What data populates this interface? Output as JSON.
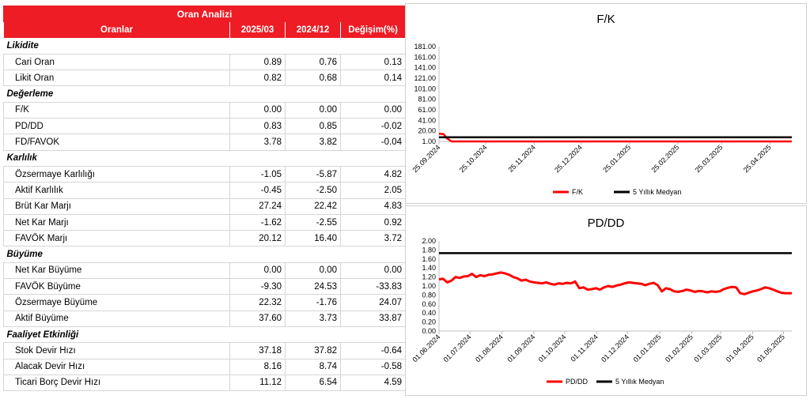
{
  "table": {
    "title": "Oran Analizi",
    "headers": [
      "Oranlar",
      "2025/03",
      "2024/12",
      "Değişim(%)"
    ],
    "sections": [
      {
        "name": "Likidite",
        "rows": [
          {
            "label": "Cari Oran",
            "v1": "0.89",
            "v2": "0.76",
            "chg": "0.13"
          },
          {
            "label": "Likit Oran",
            "v1": "0.82",
            "v2": "0.68",
            "chg": "0.14"
          }
        ]
      },
      {
        "name": "Değerleme",
        "rows": [
          {
            "label": "F/K",
            "v1": "0.00",
            "v2": "0.00",
            "chg": "0.00"
          },
          {
            "label": "PD/DD",
            "v1": "0.83",
            "v2": "0.85",
            "chg": "-0.02"
          },
          {
            "label": "FD/FAVOK",
            "v1": "3.78",
            "v2": "3.82",
            "chg": "-0.04"
          }
        ]
      },
      {
        "name": "Karlılık",
        "rows": [
          {
            "label": "Özsermaye Karlılığı",
            "v1": "-1.05",
            "v2": "-5.87",
            "chg": "4.82"
          },
          {
            "label": "Aktif Karlılık",
            "v1": "-0.45",
            "v2": "-2.50",
            "chg": "2.05"
          },
          {
            "label": "Brüt Kar Marjı",
            "v1": "27.24",
            "v2": "22.42",
            "chg": "4.83"
          },
          {
            "label": "Net Kar Marjı",
            "v1": "-1.62",
            "v2": "-2.55",
            "chg": "0.92"
          },
          {
            "label": "FAVÖK Marjı",
            "v1": "20.12",
            "v2": "16.40",
            "chg": "3.72"
          }
        ]
      },
      {
        "name": "Büyüme",
        "rows": [
          {
            "label": "Net Kar Büyüme",
            "v1": "0.00",
            "v2": "0.00",
            "chg": "0.00"
          },
          {
            "label": "FAVÖK Büyüme",
            "v1": "-9.30",
            "v2": "24.53",
            "chg": "-33.83"
          },
          {
            "label": "Özsermaye Büyüme",
            "v1": "22.32",
            "v2": "-1.76",
            "chg": "24.07"
          },
          {
            "label": "Aktif Büyüme",
            "v1": "37.60",
            "v2": "3.73",
            "chg": "33.87"
          }
        ]
      },
      {
        "name": "Faaliyet Etkinliği",
        "rows": [
          {
            "label": "Stok Devir Hızı",
            "v1": "37.18",
            "v2": "37.82",
            "chg": "-0.64"
          },
          {
            "label": "Alacak Devir Hızı",
            "v1": "8.16",
            "v2": "8.74",
            "chg": "-0.58"
          },
          {
            "label": "Ticari Borç Devir Hızı",
            "v1": "11.12",
            "v2": "6.54",
            "chg": "4.59"
          }
        ]
      }
    ]
  },
  "colors": {
    "header_bg": "#ee1c25",
    "series": "#ff0000",
    "median": "#000000"
  },
  "chart_data": [
    {
      "type": "line",
      "title": "F/K",
      "yticks": [
        "181.00",
        "161.00",
        "141.00",
        "121.00",
        "101.00",
        "81.00",
        "61.00",
        "41.00",
        "20.00",
        "1.00"
      ],
      "xticks": [
        "25.09.2024",
        "25.10.2024",
        "25.11.2024",
        "25.12.2024",
        "25.01.2025",
        "25.02.2025",
        "25.03.2025",
        "25.04.2025"
      ],
      "ylim": [
        1,
        181
      ],
      "x_start": "2024-09-25",
      "x_end": "2025-05-09",
      "series": [
        {
          "name": "F/K",
          "points": [
            [
              "2024-09-25",
              15.5
            ],
            [
              "2024-09-28",
              15.0
            ],
            [
              "2024-09-30",
              7.0
            ],
            [
              "2024-10-03",
              1.0
            ],
            [
              "2025-05-09",
              1.0
            ]
          ]
        },
        {
          "name": "5 Yıllık Medyan",
          "points": [
            [
              "2024-09-25",
              9.0
            ],
            [
              "2025-05-09",
              9.0
            ]
          ]
        }
      ],
      "legend": [
        "F/K",
        "5 Yıllık Medyan"
      ],
      "legend_position": "bottom"
    },
    {
      "type": "line",
      "title": "PD/DD",
      "yticks": [
        "2.00",
        "1.80",
        "1.60",
        "1.40",
        "1.20",
        "1.00",
        "0.80",
        "0.60",
        "0.40",
        "0.20",
        "0.00"
      ],
      "xticks": [
        "01.06.2024",
        "01.07.2024",
        "01.08.2024",
        "01.09.2024",
        "01.10.2024",
        "01.11.2024",
        "01.12.2024",
        "01.01.2025",
        "01.02.2025",
        "01.03.2025",
        "01.04.2025",
        "01.05.2025"
      ],
      "ylim": [
        0,
        2
      ],
      "x_start": "2024-06-01",
      "x_end": "2025-05-09",
      "series": [
        {
          "name": "PD/DD",
          "points": [
            [
              "2024-06-01",
              1.15
            ],
            [
              "2024-06-05",
              1.16
            ],
            [
              "2024-06-09",
              1.08
            ],
            [
              "2024-06-13",
              1.12
            ],
            [
              "2024-06-17",
              1.2
            ],
            [
              "2024-06-21",
              1.18
            ],
            [
              "2024-06-25",
              1.21
            ],
            [
              "2024-06-29",
              1.22
            ],
            [
              "2024-07-03",
              1.27
            ],
            [
              "2024-07-07",
              1.2
            ],
            [
              "2024-07-11",
              1.24
            ],
            [
              "2024-07-15",
              1.22
            ],
            [
              "2024-07-19",
              1.25
            ],
            [
              "2024-07-23",
              1.26
            ],
            [
              "2024-07-27",
              1.28
            ],
            [
              "2024-07-31",
              1.3
            ],
            [
              "2024-08-04",
              1.28
            ],
            [
              "2024-08-08",
              1.25
            ],
            [
              "2024-08-12",
              1.2
            ],
            [
              "2024-08-16",
              1.17
            ],
            [
              "2024-08-20",
              1.12
            ],
            [
              "2024-08-24",
              1.14
            ],
            [
              "2024-08-28",
              1.1
            ],
            [
              "2024-09-01",
              1.08
            ],
            [
              "2024-09-05",
              1.07
            ],
            [
              "2024-09-09",
              1.06
            ],
            [
              "2024-09-13",
              1.08
            ],
            [
              "2024-09-17",
              1.05
            ],
            [
              "2024-09-21",
              1.03
            ],
            [
              "2024-09-25",
              1.06
            ],
            [
              "2024-09-29",
              1.05
            ],
            [
              "2024-10-03",
              1.07
            ],
            [
              "2024-10-07",
              1.06
            ],
            [
              "2024-10-11",
              1.1
            ],
            [
              "2024-10-15",
              0.95
            ],
            [
              "2024-10-19",
              0.97
            ],
            [
              "2024-10-23",
              0.92
            ],
            [
              "2024-10-27",
              0.93
            ],
            [
              "2024-10-31",
              0.95
            ],
            [
              "2024-11-04",
              0.92
            ],
            [
              "2024-11-08",
              0.97
            ],
            [
              "2024-11-12",
              1.0
            ],
            [
              "2024-11-16",
              0.98
            ],
            [
              "2024-11-20",
              1.01
            ],
            [
              "2024-11-24",
              1.03
            ],
            [
              "2024-11-28",
              1.06
            ],
            [
              "2024-12-02",
              1.08
            ],
            [
              "2024-12-06",
              1.07
            ],
            [
              "2024-12-10",
              1.06
            ],
            [
              "2024-12-14",
              1.05
            ],
            [
              "2024-12-18",
              1.02
            ],
            [
              "2024-12-22",
              1.05
            ],
            [
              "2024-12-26",
              1.07
            ],
            [
              "2024-12-30",
              1.02
            ],
            [
              "2025-01-03",
              0.88
            ],
            [
              "2025-01-07",
              0.95
            ],
            [
              "2025-01-11",
              0.93
            ],
            [
              "2025-01-15",
              0.88
            ],
            [
              "2025-01-19",
              0.87
            ],
            [
              "2025-01-23",
              0.89
            ],
            [
              "2025-01-27",
              0.92
            ],
            [
              "2025-01-31",
              0.9
            ],
            [
              "2025-02-04",
              0.87
            ],
            [
              "2025-02-08",
              0.89
            ],
            [
              "2025-02-12",
              0.88
            ],
            [
              "2025-02-16",
              0.86
            ],
            [
              "2025-02-20",
              0.88
            ],
            [
              "2025-02-24",
              0.87
            ],
            [
              "2025-02-28",
              0.88
            ],
            [
              "2025-03-04",
              0.93
            ],
            [
              "2025-03-08",
              0.96
            ],
            [
              "2025-03-12",
              0.98
            ],
            [
              "2025-03-16",
              0.97
            ],
            [
              "2025-03-20",
              0.84
            ],
            [
              "2025-03-24",
              0.82
            ],
            [
              "2025-03-28",
              0.85
            ],
            [
              "2025-04-01",
              0.88
            ],
            [
              "2025-04-05",
              0.9
            ],
            [
              "2025-04-09",
              0.93
            ],
            [
              "2025-04-13",
              0.97
            ],
            [
              "2025-04-17",
              0.95
            ],
            [
              "2025-04-21",
              0.92
            ],
            [
              "2025-04-25",
              0.88
            ],
            [
              "2025-04-29",
              0.85
            ],
            [
              "2025-05-03",
              0.84
            ],
            [
              "2025-05-09",
              0.84
            ]
          ]
        },
        {
          "name": "5 Yıllık Medyan",
          "points": [
            [
              "2024-06-01",
              1.73
            ],
            [
              "2025-05-09",
              1.73
            ]
          ]
        }
      ],
      "legend": [
        "PD/DD",
        "5 Yıllık Medyan"
      ],
      "legend_position": "bottom"
    }
  ]
}
